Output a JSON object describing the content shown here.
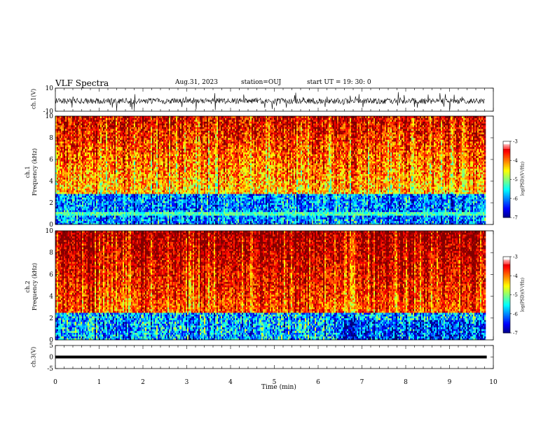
{
  "header": {
    "title": "VLF Spectra",
    "date": "Aug.31, 2023",
    "station": "station=OUJ",
    "start_ut": "start UT =  19: 30: 0"
  },
  "chart_data": [
    {
      "type": "line",
      "panel": "ch1-waveform",
      "ylabel": "ch.1(V)",
      "ylim": [
        -10,
        10
      ],
      "y_ticks": [
        "10",
        "-10"
      ],
      "xlim": [
        0,
        10
      ],
      "description_color": "#000000"
    },
    {
      "type": "heatmap",
      "panel": "ch1-spectrogram",
      "ylabel": "ch.1\nFrequency (kHz)",
      "ylabel_line1": "ch.1",
      "ylabel_line2": "Frequency (kHz)",
      "ylim": [
        0,
        10
      ],
      "y_ticks": [
        "0",
        "2",
        "4",
        "6",
        "8",
        "10"
      ],
      "xlim": [
        0,
        9.85
      ],
      "colorbar": {
        "min": -7,
        "max": -3,
        "ticks": [
          "-3",
          "-4",
          "-5",
          "-6",
          "-7"
        ],
        "label": "log(PSD)(V²/Hz)"
      }
    },
    {
      "type": "heatmap",
      "panel": "ch2-spectrogram",
      "ylabel_line1": "ch.2",
      "ylabel_line2": "Frequency (kHz)",
      "ylim": [
        0,
        10
      ],
      "y_ticks": [
        "0",
        "2",
        "4",
        "6",
        "8",
        "10"
      ],
      "xlim": [
        0,
        9.85
      ],
      "colorbar": {
        "min": -7,
        "max": -3,
        "ticks": [
          "-3",
          "-4",
          "-5",
          "-6",
          "-7"
        ],
        "label": "log(PSD)(V²/Hz)"
      }
    },
    {
      "type": "line",
      "panel": "ch3-waveform",
      "ylabel": "ch.3(V)",
      "ylim": [
        -5,
        5
      ],
      "y_ticks": [
        "5",
        "0",
        "-5"
      ],
      "xlim": [
        0,
        10
      ],
      "series": [
        {
          "x": [
            0,
            9.85
          ],
          "y": [
            0,
            0
          ]
        }
      ]
    }
  ],
  "x_axis": {
    "label": "Time (min)",
    "ticks": [
      "0",
      "1",
      "2",
      "3",
      "4",
      "5",
      "6",
      "7",
      "8",
      "9",
      "10"
    ]
  }
}
